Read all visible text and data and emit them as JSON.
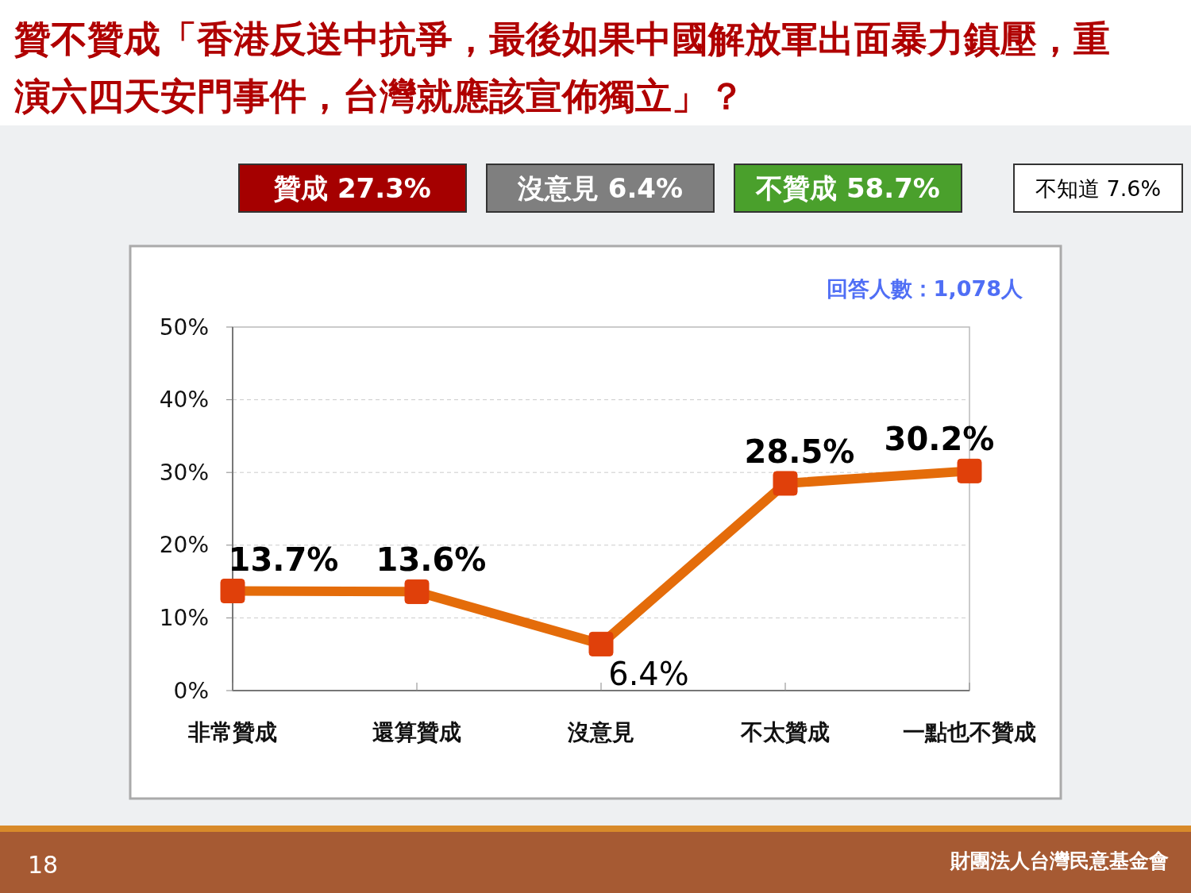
{
  "chart_data": {
    "type": "line",
    "title": "贊不贊成「香港反送中抗爭，最後如果中國解放軍出面暴力鎮壓，重演六四天安門事件，台灣就應該宣佈獨立」？",
    "categories": [
      "非常贊成",
      "還算贊成",
      "沒意見",
      "不太贊成",
      "一點也不贊成"
    ],
    "series": [
      {
        "color": "#e46c0a",
        "values": [
          13.7,
          13.6,
          6.4,
          28.5,
          30.2
        ],
        "value_labels": [
          "13.7%",
          "13.6%",
          "6.4%",
          "28.5%",
          "30.2%"
        ]
      }
    ],
    "ylim": [
      0,
      50
    ],
    "yticks": [
      {
        "value": 0,
        "label": "0%"
      },
      {
        "value": 10,
        "label": "10%"
      },
      {
        "value": 20,
        "label": "20%"
      },
      {
        "value": 30,
        "label": "30%"
      },
      {
        "value": 40,
        "label": "40%"
      },
      {
        "value": 50,
        "label": "50%"
      }
    ],
    "grid": "y",
    "marker": "square",
    "annotations": [
      "回答人數：1,078人",
      "贊成 27.3%",
      "沒意見 6.4%",
      "不贊成 58.7%",
      "不知道 7.6%",
      "18",
      "財團法人台灣民意基金會"
    ]
  }
}
